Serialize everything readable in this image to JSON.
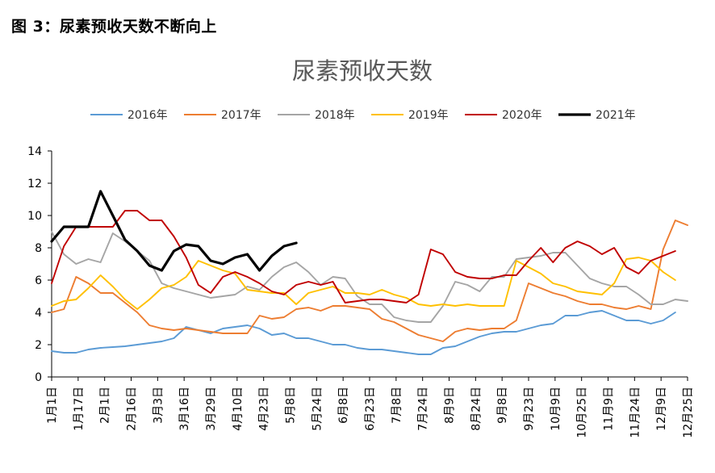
{
  "figure_caption": "图 3：尿素预收天数不断向上",
  "chart_data": {
    "type": "line",
    "title": "尿素预收天数",
    "xlabel": "",
    "ylabel": "",
    "ylim": [
      0,
      14
    ],
    "yticks": [
      "0",
      "2",
      "4",
      "6",
      "8",
      "10",
      "12",
      "14"
    ],
    "x_tick_labels": [
      "1月1日",
      "1月17日",
      "2月1日",
      "2月16日",
      "3月3日",
      "3月16日",
      "3月29日",
      "4月10日",
      "4月23日",
      "5月8日",
      "5月24日",
      "6月8日",
      "6月23日",
      "7月8日",
      "7月24日",
      "8月9日",
      "8月24日",
      "9月8日",
      "9月23日",
      "10月9日",
      "10月25日",
      "11月9日",
      "11月24日",
      "12月9日",
      "12月25日"
    ],
    "grid": false,
    "legend_position": "top",
    "series": [
      {
        "name": "2016年",
        "color": "#5B9BD5",
        "values": [
          1.6,
          1.5,
          1.5,
          1.7,
          1.8,
          1.85,
          1.9,
          2.0,
          2.1,
          2.2,
          2.4,
          3.1,
          2.9,
          2.7,
          3.0,
          3.1,
          3.2,
          3.0,
          2.6,
          2.7,
          2.4,
          2.4,
          2.2,
          2.0,
          2.0,
          1.8,
          1.7,
          1.7,
          1.6,
          1.5,
          1.4,
          1.4,
          1.8,
          1.9,
          2.2,
          2.5,
          2.7,
          2.8,
          2.8,
          3.0,
          3.2,
          3.3,
          3.8,
          3.8,
          4.0,
          4.1,
          3.8,
          3.5,
          3.5,
          3.3,
          3.5,
          4.0
        ]
      },
      {
        "name": "2017年",
        "color": "#ED7D31",
        "values": [
          4.0,
          4.2,
          6.2,
          5.8,
          5.2,
          5.2,
          4.6,
          4.0,
          3.2,
          3.0,
          2.9,
          3.0,
          2.9,
          2.8,
          2.7,
          2.7,
          2.7,
          3.8,
          3.6,
          3.7,
          4.2,
          4.3,
          4.1,
          4.4,
          4.4,
          4.3,
          4.2,
          3.6,
          3.4,
          3.0,
          2.6,
          2.4,
          2.2,
          2.8,
          3.0,
          2.9,
          3.0,
          3.0,
          3.5,
          5.8,
          5.5,
          5.2,
          5.0,
          4.7,
          4.5,
          4.5,
          4.3,
          4.2,
          4.4,
          4.2,
          7.9,
          9.7,
          9.4
        ]
      },
      {
        "name": "2018年",
        "color": "#A5A5A5",
        "values": [
          9.0,
          7.6,
          7.0,
          7.3,
          7.1,
          8.9,
          8.4,
          7.8,
          7.2,
          5.8,
          5.5,
          5.3,
          5.1,
          4.9,
          5.0,
          5.1,
          5.6,
          5.4,
          6.2,
          6.8,
          7.1,
          6.5,
          5.7,
          6.2,
          6.1,
          5.0,
          4.5,
          4.5,
          3.7,
          3.5,
          3.4,
          3.4,
          4.4,
          5.9,
          5.7,
          5.3,
          6.2,
          6.2,
          7.3,
          7.4,
          7.5,
          7.7,
          7.7,
          6.9,
          6.1,
          5.8,
          5.6,
          5.6,
          5.1,
          4.5,
          4.5,
          4.8,
          4.7
        ]
      },
      {
        "name": "2019年",
        "color": "#FFC000",
        "values": [
          4.4,
          4.7,
          4.8,
          5.5,
          6.3,
          5.6,
          4.8,
          4.2,
          4.8,
          5.5,
          5.7,
          6.2,
          7.2,
          6.9,
          6.6,
          6.4,
          5.4,
          5.3,
          5.2,
          5.2,
          4.5,
          5.2,
          5.4,
          5.6,
          5.2,
          5.2,
          5.1,
          5.4,
          5.1,
          4.9,
          4.5,
          4.4,
          4.5,
          4.4,
          4.5,
          4.4,
          4.4,
          4.4,
          7.2,
          6.8,
          6.4,
          5.8,
          5.6,
          5.3,
          5.2,
          5.1,
          5.8,
          7.3,
          7.4,
          7.2,
          6.5,
          6.0
        ]
      },
      {
        "name": "2020年",
        "color": "#C00000",
        "values": [
          5.8,
          8.1,
          9.3,
          9.3,
          9.3,
          9.3,
          10.3,
          10.3,
          9.7,
          9.7,
          8.7,
          7.4,
          5.7,
          5.2,
          6.2,
          6.5,
          6.2,
          5.8,
          5.3,
          5.1,
          5.7,
          5.9,
          5.7,
          5.9,
          4.6,
          4.7,
          4.8,
          4.8,
          4.7,
          4.6,
          5.1,
          7.9,
          7.6,
          6.5,
          6.2,
          6.1,
          6.1,
          6.3,
          6.3,
          7.2,
          8.0,
          7.1,
          8.0,
          8.4,
          8.1,
          7.6,
          8.0,
          6.8,
          6.4,
          7.2,
          7.5,
          7.8
        ]
      },
      {
        "name": "2021年",
        "color": "#000000",
        "values": [
          8.4,
          9.3,
          9.3,
          9.3,
          11.5,
          10.0,
          8.5,
          7.8,
          6.9,
          6.6,
          7.8,
          8.2,
          8.1,
          7.2,
          7.0,
          7.4,
          7.6,
          6.6,
          7.5,
          8.1,
          8.3
        ]
      }
    ]
  }
}
